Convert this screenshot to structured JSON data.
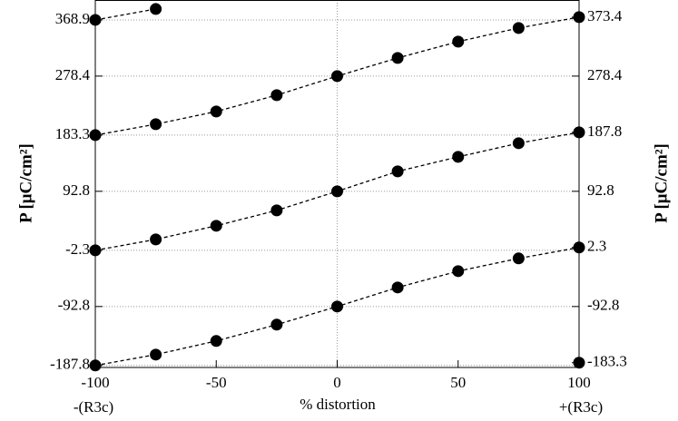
{
  "chart_data": {
    "type": "line",
    "xlabel": "% distortion",
    "ylabel": "P [μC/cm²]",
    "y2label": "P [μC/cm²]",
    "x": [
      -100,
      -75,
      -50,
      -25,
      0,
      25,
      50,
      75,
      100
    ],
    "x_extra_labels": [
      "-(R3c)",
      "+(R3c)"
    ],
    "xlim": [
      -100,
      100
    ],
    "xticks": [
      -100,
      -50,
      0,
      50,
      100
    ],
    "ylim": [
      -191,
      401
    ],
    "yticks": [
      368.9,
      278.4,
      183.3,
      92.8,
      -2.3,
      -92.8,
      -187.8
    ],
    "y2lim": [
      -191,
      401
    ],
    "y2ticks": [
      373.4,
      278.4,
      187.8,
      92.8,
      2.3,
      -92.8,
      -183.3
    ],
    "grid": true,
    "series": [
      {
        "color": "#000000",
        "values": [
          -187.8,
          -170.3,
          -148.3,
          -122.0,
          -92.8,
          -62.1,
          -35.8,
          -15.3,
          2.3
        ]
      },
      {
        "color": "#000000",
        "values": [
          -2.3,
          15.3,
          37.3,
          62.1,
          92.8,
          124.9,
          148.3,
          170.3,
          187.8
        ]
      },
      {
        "color": "#000000",
        "values": [
          183.3,
          200.9,
          221.4,
          247.7,
          278.4,
          307.6,
          333.9,
          355.9,
          373.4
        ]
      },
      {
        "color": "#000000",
        "values": [
          368.9,
          386.5,
          null,
          null,
          null,
          null,
          null,
          null,
          null
        ]
      },
      {
        "color": "#000000",
        "values": [
          null,
          null,
          null,
          null,
          null,
          null,
          null,
          null,
          -183.3
        ]
      }
    ]
  }
}
